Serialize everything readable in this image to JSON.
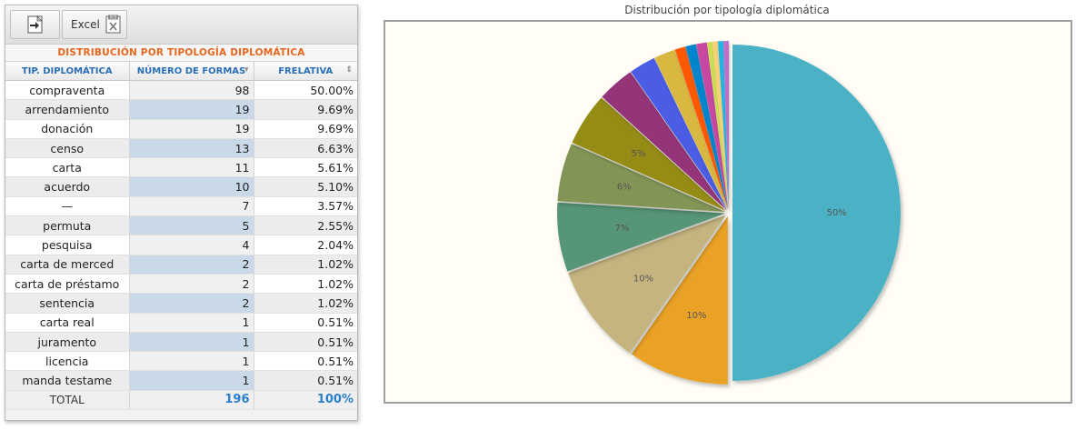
{
  "toolbar": {
    "excel_label": "Excel",
    "export_icon": "export-icon",
    "excel_icon": "excel-file-icon"
  },
  "table": {
    "caption": "DISTRIBUCIÓN POR TIPOLOGÍA DIPLOMÁTICA",
    "headers": [
      "TIP. DIPLOMÁTICA",
      "NÚMERO DE FORMAS",
      "FRELATIVA"
    ],
    "sort_icons": [
      "⇕",
      "▾",
      "⇕"
    ],
    "rows": [
      [
        "compraventa",
        "98",
        "50.00%"
      ],
      [
        "arrendamiento",
        "19",
        "9.69%"
      ],
      [
        "donación",
        "19",
        "9.69%"
      ],
      [
        "censo",
        "13",
        "6.63%"
      ],
      [
        "carta",
        "11",
        "5.61%"
      ],
      [
        "acuerdo",
        "10",
        "5.10%"
      ],
      [
        "—",
        "7",
        "3.57%"
      ],
      [
        "permuta",
        "5",
        "2.55%"
      ],
      [
        "pesquisa",
        "4",
        "2.04%"
      ],
      [
        "carta de merced",
        "2",
        "1.02%"
      ],
      [
        "carta de préstamo",
        "2",
        "1.02%"
      ],
      [
        "sentencia",
        "2",
        "1.02%"
      ],
      [
        "carta real",
        "1",
        "0.51%"
      ],
      [
        "juramento",
        "1",
        "0.51%"
      ],
      [
        "licencia",
        "1",
        "0.51%"
      ],
      [
        "manda testame",
        "1",
        "0.51%"
      ]
    ],
    "total": [
      "TOTAL",
      "196",
      "100%"
    ]
  },
  "chart_data": {
    "type": "pie",
    "title": "Distribución por tipología diplomática",
    "categories": [
      "compraventa",
      "arrendamiento",
      "donación",
      "censo",
      "carta",
      "acuerdo",
      "—",
      "permuta",
      "pesquisa",
      "carta de merced",
      "carta de préstamo",
      "sentencia",
      "carta real",
      "juramento",
      "licencia",
      "manda testame"
    ],
    "values": [
      98,
      19,
      19,
      13,
      11,
      10,
      7,
      5,
      4,
      2,
      2,
      2,
      1,
      1,
      1,
      1
    ],
    "slice_labels": [
      "50%",
      "10%",
      "10%",
      "7%",
      "6%",
      "5%",
      "",
      "",
      "",
      "",
      "",
      "",
      "",
      "",
      "",
      ""
    ],
    "colors": [
      "#4bb2c5",
      "#eaa228",
      "#c5b47f",
      "#579575",
      "#839557",
      "#958c12",
      "#953579",
      "#4b5de4",
      "#d8b83f",
      "#ff5800",
      "#0085cc",
      "#c747a3",
      "#cddf54",
      "#fbd178",
      "#26b4e3",
      "#bd70c7"
    ]
  }
}
